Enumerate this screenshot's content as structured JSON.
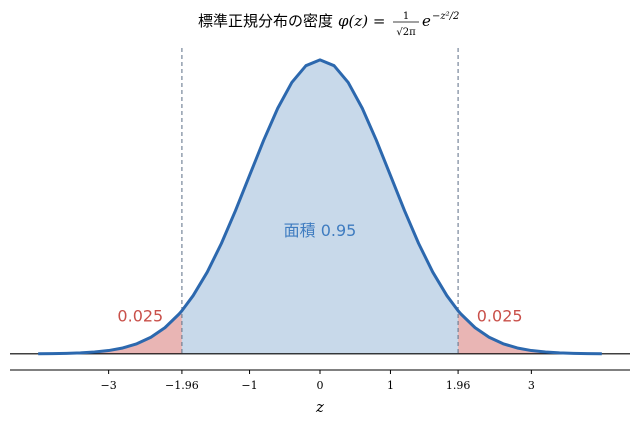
{
  "chart_data": {
    "type": "density",
    "title": {
      "text": "標準正規分布の密度",
      "lhs": "φ(z) =",
      "numerator": "1",
      "denominator": "√2π",
      "base": "e",
      "exponent": "−z²/2"
    },
    "xlabel": "z",
    "x": [
      -4,
      -3.8,
      -3.6,
      -3.4,
      -3.2,
      -3,
      -2.8,
      -2.6,
      -2.4,
      -2.2,
      -2,
      -1.96,
      -1.8,
      -1.6,
      -1.4,
      -1.2,
      -1,
      -0.8,
      -0.6,
      -0.4,
      -0.2,
      0,
      0.2,
      0.4,
      0.6,
      0.8,
      1,
      1.2,
      1.4,
      1.6,
      1.8,
      1.96,
      2,
      2.2,
      2.4,
      2.6,
      2.8,
      3,
      3.2,
      3.4,
      3.6,
      3.8,
      4
    ],
    "values": [
      0.0001,
      0.0003,
      0.0006,
      0.0012,
      0.0024,
      0.0044,
      0.0079,
      0.0136,
      0.0224,
      0.0355,
      0.054,
      0.0584,
      0.079,
      0.1109,
      0.1497,
      0.1942,
      0.242,
      0.2897,
      0.3332,
      0.3683,
      0.391,
      0.3989,
      0.391,
      0.3683,
      0.3332,
      0.2897,
      0.242,
      0.1942,
      0.1497,
      0.1109,
      0.079,
      0.0584,
      0.054,
      0.0355,
      0.0224,
      0.0136,
      0.0079,
      0.0044,
      0.0024,
      0.0012,
      0.0006,
      0.0003,
      0.0001
    ],
    "color": "#2c68ae",
    "center_fill": "#c8d9ea",
    "tail_fill": "#e9b5b4",
    "vlines": [
      -1.96,
      1.96
    ],
    "xlim": [
      -4.4,
      4.4
    ],
    "ylim": [
      -0.022,
      0.415
    ],
    "xticks": [
      {
        "value": -3,
        "label": "−3"
      },
      {
        "value": -1.96,
        "label": "−1.96"
      },
      {
        "value": -1,
        "label": "−1"
      },
      0,
      1,
      1.96,
      3
    ],
    "annotations": [
      {
        "text": "面積 0.95",
        "x": 0,
        "y": 0.168,
        "color": "#3f7cc0"
      },
      {
        "text": "0.025",
        "x": -2.55,
        "y": 0.052,
        "color": "#c9504a"
      },
      {
        "text": "0.025",
        "x": 2.55,
        "y": 0.052,
        "color": "#c9504a"
      }
    ]
  }
}
